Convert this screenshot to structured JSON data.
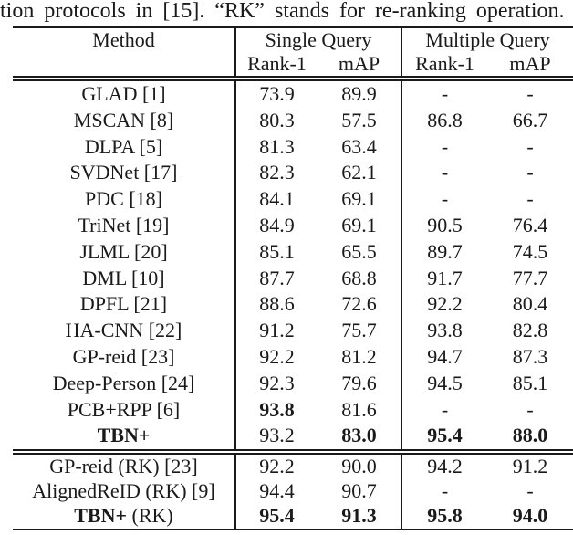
{
  "caption": "tion protocols in [15]. “RK” stands for re-ranking operation.",
  "table": {
    "header": {
      "method": "Method",
      "single_query": "Single Query",
      "multiple_query": "Multiple Query",
      "sub": [
        "Rank-1",
        "mAP",
        "Rank-1",
        "mAP"
      ]
    },
    "sections": [
      {
        "name": "main-results",
        "rows": [
          {
            "method": [
              [
                "GLAD [1]",
                false
              ]
            ],
            "values": [
              [
                "73.9",
                false
              ],
              [
                "89.9",
                false
              ],
              [
                "-",
                false
              ],
              [
                "-",
                false
              ]
            ]
          },
          {
            "method": [
              [
                "MSCAN [8]",
                false
              ]
            ],
            "values": [
              [
                "80.3",
                false
              ],
              [
                "57.5",
                false
              ],
              [
                "86.8",
                false
              ],
              [
                "66.7",
                false
              ]
            ]
          },
          {
            "method": [
              [
                "DLPA [5]",
                false
              ]
            ],
            "values": [
              [
                "81.3",
                false
              ],
              [
                "63.4",
                false
              ],
              [
                "-",
                false
              ],
              [
                "-",
                false
              ]
            ]
          },
          {
            "method": [
              [
                "SVDNet [17]",
                false
              ]
            ],
            "values": [
              [
                "82.3",
                false
              ],
              [
                "62.1",
                false
              ],
              [
                "-",
                false
              ],
              [
                "-",
                false
              ]
            ]
          },
          {
            "method": [
              [
                "PDC [18]",
                false
              ]
            ],
            "values": [
              [
                "84.1",
                false
              ],
              [
                "69.1",
                false
              ],
              [
                "-",
                false
              ],
              [
                "-",
                false
              ]
            ]
          },
          {
            "method": [
              [
                "TriNet [19]",
                false
              ]
            ],
            "values": [
              [
                "84.9",
                false
              ],
              [
                "69.1",
                false
              ],
              [
                "90.5",
                false
              ],
              [
                "76.4",
                false
              ]
            ]
          },
          {
            "method": [
              [
                "JLML [20]",
                false
              ]
            ],
            "values": [
              [
                "85.1",
                false
              ],
              [
                "65.5",
                false
              ],
              [
                "89.7",
                false
              ],
              [
                "74.5",
                false
              ]
            ]
          },
          {
            "method": [
              [
                "DML [10]",
                false
              ]
            ],
            "values": [
              [
                "87.7",
                false
              ],
              [
                "68.8",
                false
              ],
              [
                "91.7",
                false
              ],
              [
                "77.7",
                false
              ]
            ]
          },
          {
            "method": [
              [
                "DPFL [21]",
                false
              ]
            ],
            "values": [
              [
                "88.6",
                false
              ],
              [
                "72.6",
                false
              ],
              [
                "92.2",
                false
              ],
              [
                "80.4",
                false
              ]
            ]
          },
          {
            "method": [
              [
                "HA-CNN [22]",
                false
              ]
            ],
            "values": [
              [
                "91.2",
                false
              ],
              [
                "75.7",
                false
              ],
              [
                "93.8",
                false
              ],
              [
                "82.8",
                false
              ]
            ]
          },
          {
            "method": [
              [
                "GP-reid [23]",
                false
              ]
            ],
            "values": [
              [
                "92.2",
                false
              ],
              [
                "81.2",
                false
              ],
              [
                "94.7",
                false
              ],
              [
                "87.3",
                false
              ]
            ]
          },
          {
            "method": [
              [
                "Deep-Person [24]",
                false
              ]
            ],
            "values": [
              [
                "92.3",
                false
              ],
              [
                "79.6",
                false
              ],
              [
                "94.5",
                false
              ],
              [
                "85.1",
                false
              ]
            ]
          },
          {
            "method": [
              [
                "PCB+RPP [6]",
                false
              ]
            ],
            "values": [
              [
                "93.8",
                true
              ],
              [
                "81.6",
                false
              ],
              [
                "-",
                false
              ],
              [
                "-",
                false
              ]
            ]
          },
          {
            "method": [
              [
                "TBN+",
                true
              ]
            ],
            "values": [
              [
                "93.2",
                false
              ],
              [
                "83.0",
                true
              ],
              [
                "95.4",
                true
              ],
              [
                "88.0",
                true
              ]
            ]
          }
        ]
      },
      {
        "name": "reranking-results",
        "rows": [
          {
            "method": [
              [
                "GP-reid (RK) [23]",
                false
              ]
            ],
            "values": [
              [
                "92.2",
                false
              ],
              [
                "90.0",
                false
              ],
              [
                "94.2",
                false
              ],
              [
                "91.2",
                false
              ]
            ]
          },
          {
            "method": [
              [
                "AlignedReID (RK) [9]",
                false
              ]
            ],
            "values": [
              [
                "94.4",
                false
              ],
              [
                "90.7",
                false
              ],
              [
                "-",
                false
              ],
              [
                "-",
                false
              ]
            ]
          },
          {
            "method": [
              [
                "TBN+",
                true
              ],
              [
                " (RK)",
                false
              ]
            ],
            "values": [
              [
                "95.4",
                true
              ],
              [
                "91.3",
                true
              ],
              [
                "95.8",
                true
              ],
              [
                "94.0",
                true
              ]
            ]
          }
        ]
      }
    ]
  }
}
